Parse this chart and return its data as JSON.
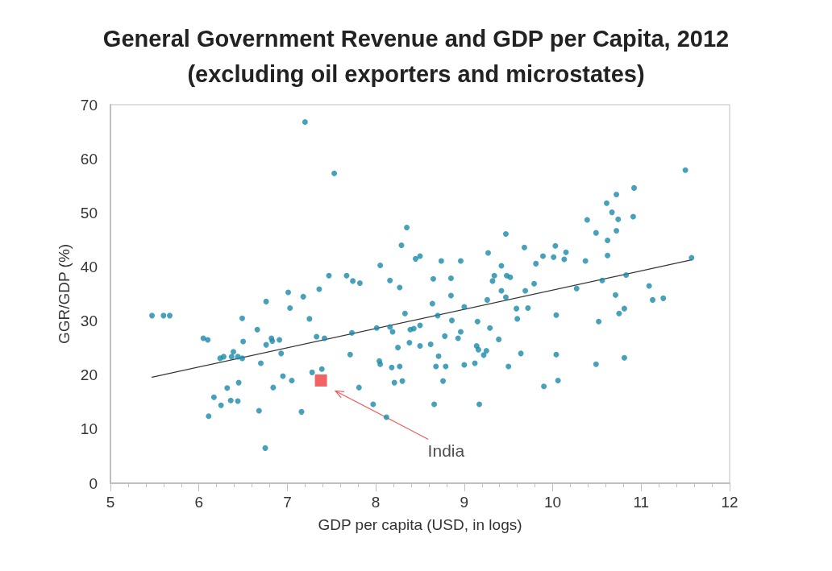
{
  "chart_data": {
    "type": "scatter",
    "title": "General Government Revenue and GDP per Capita, 2012",
    "subtitle": "(excluding oil exporters and microstates)",
    "xlabel": "GDP per capita (USD, in logs)",
    "ylabel": "GGR/GDP (%)",
    "xlim": [
      5,
      12
    ],
    "xticks": [
      5,
      6,
      7,
      8,
      9,
      10,
      11,
      12
    ],
    "ylim": [
      0,
      70
    ],
    "yticks": [
      0,
      10,
      20,
      30,
      40,
      50,
      60,
      70
    ],
    "grid": false,
    "marker": "circle",
    "series": [
      {
        "color": "#1a8aaa",
        "x": [
          7.2,
          5.47,
          5.6,
          5.67,
          6.05,
          6.1,
          6.76,
          7.01,
          7.18,
          7.03,
          6.49,
          7.25,
          6.66,
          6.5,
          6.76,
          6.82,
          6.83,
          6.91,
          6.93,
          6.24,
          6.28,
          6.39,
          6.37,
          6.44,
          6.49,
          6.7,
          7.28,
          6.95,
          7.05,
          6.84,
          6.45,
          6.32,
          6.17,
          6.25,
          6.36,
          6.44,
          6.11,
          6.68,
          7.16,
          6.75,
          7.53,
          8.35,
          8.29,
          8.45,
          8.5,
          9.47,
          9.27,
          9.42,
          8.05,
          8.74,
          8.96,
          7.47,
          7.67,
          7.74,
          7.82,
          8.16,
          8.27,
          8.65,
          8.85,
          7.36,
          8.85,
          9.34,
          9.48,
          9.52,
          9.32,
          9.42,
          9.47,
          9.26,
          8.64,
          8.33,
          8.7,
          9.0,
          8.01,
          8.16,
          8.19,
          8.39,
          8.43,
          8.5,
          8.86,
          9.15,
          9.29,
          7.33,
          7.42,
          7.73,
          8.38,
          8.5,
          8.62,
          8.25,
          8.78,
          8.96,
          8.93,
          9.39,
          9.14,
          9.16,
          9.25,
          9.22,
          7.71,
          8.71,
          8.04,
          8.05,
          8.18,
          8.27,
          8.68,
          8.79,
          9.0,
          9.12,
          9.5,
          7.39,
          8.21,
          8.3,
          8.76,
          7.81,
          7.97,
          8.66,
          9.17,
          8.12,
          11.5,
          10.92,
          10.72,
          10.61,
          10.67,
          10.74,
          10.91,
          10.72,
          10.39,
          10.49,
          10.62,
          10.62,
          10.37,
          9.68,
          10.03,
          10.15,
          10.01,
          10.13,
          9.89,
          9.81,
          11.57,
          9.69,
          9.79,
          10.27,
          10.56,
          10.83,
          9.59,
          9.72,
          9.6,
          10.04,
          10.71,
          11.09,
          11.13,
          11.25,
          10.75,
          10.81,
          10.52,
          9.64,
          10.04,
          10.49,
          10.81,
          10.06,
          9.9
        ],
        "values": [
          66.8,
          31,
          31,
          31,
          26.8,
          26.5,
          33.6,
          35.3,
          34.5,
          32.4,
          30.5,
          30.4,
          28.4,
          26.2,
          25.6,
          26.8,
          26.3,
          26.5,
          24,
          23.1,
          23.4,
          24.3,
          23.4,
          23.4,
          23.1,
          22.2,
          20.5,
          19.8,
          19,
          17.7,
          18.6,
          17.6,
          15.9,
          14.4,
          15.3,
          15.2,
          12.4,
          13.4,
          13.2,
          6.5,
          57.3,
          47.3,
          44,
          41.5,
          42,
          46.1,
          42.6,
          40.2,
          40.3,
          41.1,
          41.1,
          38.4,
          38.4,
          37.4,
          37,
          37.5,
          36.2,
          37.8,
          37.9,
          35.9,
          34.7,
          38.4,
          38.4,
          38.1,
          37.4,
          35.6,
          34.4,
          33.9,
          33.2,
          31.4,
          31,
          32.6,
          28.7,
          28.9,
          28,
          28.4,
          28.6,
          29.2,
          30.1,
          29.9,
          28.7,
          27.1,
          26.8,
          27.8,
          26,
          25.4,
          25.7,
          25.1,
          27.2,
          28,
          26.8,
          26.6,
          25.4,
          24.7,
          24.5,
          23.7,
          23.8,
          23.5,
          22.6,
          22,
          21.4,
          21.6,
          21.6,
          21.6,
          21.9,
          22.2,
          21.6,
          21.1,
          18.6,
          18.9,
          18.9,
          17.7,
          14.6,
          14.6,
          14.6,
          12.2,
          57.9,
          54.6,
          53.4,
          51.8,
          50.1,
          48.8,
          49.3,
          46.7,
          48.7,
          46.3,
          44.9,
          42.1,
          41.1,
          43.6,
          43.9,
          42.7,
          41.8,
          41.4,
          42,
          40.6,
          41.7,
          35.6,
          36.9,
          36,
          37.5,
          38.5,
          32.3,
          32.4,
          30.4,
          31.1,
          34.8,
          36.5,
          33.9,
          34.2,
          31.4,
          32.3,
          29.9,
          24,
          23.8,
          22,
          23.2,
          19,
          17.9
        ]
      },
      {
        "type": "line",
        "color": "#333333",
        "marker": "none",
        "x": [
          5.47,
          11.57
        ],
        "values": [
          19.6,
          41.3
        ]
      },
      {
        "name": "India",
        "color": "#f03c3c",
        "marker": "square",
        "x": [
          7.38
        ],
        "values": [
          19
        ]
      }
    ]
  }
}
